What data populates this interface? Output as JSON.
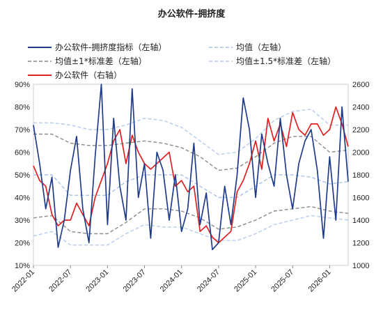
{
  "chart_data": {
    "type": "line",
    "title": "办公软件-拥挤度",
    "x_ticks": [
      "2022-01",
      "2022-07",
      "2023-01",
      "2023-07",
      "2024-01",
      "2024-07",
      "2025-01",
      "2025-07",
      "2026-01"
    ],
    "x_range": [
      "2022-01",
      "2026-04"
    ],
    "y_left": {
      "ticks": [
        "10%",
        "20%",
        "30%",
        "40%",
        "50%",
        "60%",
        "70%",
        "80%",
        "90%"
      ],
      "range": [
        10,
        90
      ]
    },
    "y_right": {
      "ticks": [
        "1000",
        "1200",
        "1400",
        "1600",
        "1800",
        "2000",
        "2200",
        "2400",
        "2600"
      ],
      "range": [
        1000,
        2600
      ]
    },
    "legend": {
      "crowding": "办公软件-拥挤度指标（左轴）",
      "mean": "均值（左轴）",
      "band1": "均值±1*标准差（左轴）",
      "band15": "均值±1.5*标准差（左轴）",
      "price": "办公软件（右轴）"
    },
    "colors": {
      "crowding": "#1f3c88",
      "mean": "#a9c1e6",
      "band1": "#8a8a8a",
      "band15": "#b6cbed",
      "price": "#e02020"
    },
    "series": [
      {
        "name": "办公软件-拥挤度指标（左轴）",
        "axis": "left",
        "x": [
          "2022-01",
          "2022-02",
          "2022-03",
          "2022-04",
          "2022-05",
          "2022-06",
          "2022-07",
          "2022-08",
          "2022-09",
          "2022-10",
          "2022-11",
          "2022-12",
          "2023-01",
          "2023-02",
          "2023-03",
          "2023-04",
          "2023-05",
          "2023-06",
          "2023-07",
          "2023-08",
          "2023-09",
          "2023-10",
          "2023-11",
          "2023-12",
          "2024-01",
          "2024-02",
          "2024-03",
          "2024-04",
          "2024-05",
          "2024-06",
          "2024-07",
          "2024-08",
          "2024-09",
          "2024-10",
          "2024-11",
          "2024-12",
          "2025-01",
          "2025-02",
          "2025-03",
          "2025-04",
          "2025-05",
          "2025-06",
          "2025-07",
          "2025-08",
          "2025-09",
          "2025-10",
          "2025-11",
          "2025-12",
          "2026-01",
          "2026-02",
          "2026-03",
          "2026-04"
        ],
        "y": [
          72,
          55,
          35,
          49,
          18,
          30,
          52,
          67,
          35,
          20,
          58,
          90,
          28,
          75,
          45,
          30,
          88,
          40,
          55,
          22,
          60,
          52,
          30,
          50,
          25,
          35,
          64,
          28,
          42,
          17,
          20,
          45,
          28,
          50,
          84,
          70,
          40,
          68,
          55,
          45,
          75,
          50,
          35,
          55,
          65,
          70,
          52,
          22,
          58,
          30,
          80,
          47
        ]
      },
      {
        "name": "均值（左轴）",
        "axis": "left",
        "x": [
          "2022-01",
          "2022-04",
          "2022-07",
          "2022-10",
          "2023-01",
          "2023-04",
          "2023-07",
          "2023-10",
          "2024-01",
          "2024-04",
          "2024-07",
          "2024-10",
          "2025-01",
          "2025-04",
          "2025-07",
          "2025-10",
          "2026-01",
          "2026-04"
        ],
        "y": [
          50,
          50,
          41,
          41,
          41,
          47,
          50,
          50,
          50,
          45,
          40,
          40,
          45,
          50,
          50,
          49,
          46,
          47
        ]
      },
      {
        "name": "均值+1*标准差（左轴）",
        "axis": "left",
        "x": [
          "2022-01",
          "2022-04",
          "2022-07",
          "2022-10",
          "2023-01",
          "2023-04",
          "2023-07",
          "2023-10",
          "2024-01",
          "2024-04",
          "2024-07",
          "2024-10",
          "2025-01",
          "2025-04",
          "2025-07",
          "2025-10",
          "2026-01",
          "2026-04"
        ],
        "y": [
          68,
          68,
          64,
          63,
          63,
          64,
          65,
          64,
          62,
          58,
          52,
          53,
          58,
          64,
          67,
          67,
          60,
          61
        ]
      },
      {
        "name": "均值-1*标准差（左轴）",
        "axis": "left",
        "x": [
          "2022-01",
          "2022-04",
          "2022-07",
          "2022-10",
          "2023-01",
          "2023-04",
          "2023-07",
          "2023-10",
          "2024-01",
          "2024-04",
          "2024-07",
          "2024-10",
          "2025-01",
          "2025-04",
          "2025-07",
          "2025-10",
          "2026-01",
          "2026-04"
        ],
        "y": [
          31,
          32,
          25,
          24,
          24,
          29,
          35,
          35,
          34,
          31,
          26,
          27,
          30,
          34,
          35,
          36,
          34,
          33
        ]
      },
      {
        "name": "均值+1.5*标准差（左轴）",
        "axis": "left",
        "x": [
          "2022-01",
          "2022-04",
          "2022-07",
          "2022-10",
          "2023-01",
          "2023-04",
          "2023-07",
          "2023-10",
          "2024-01",
          "2024-04",
          "2024-07",
          "2024-10",
          "2025-01",
          "2025-04",
          "2025-07",
          "2025-10",
          "2026-01",
          "2026-04"
        ],
        "y": [
          73,
          73,
          72,
          70,
          70,
          72,
          75,
          74,
          71,
          65,
          59,
          60,
          66,
          74,
          78,
          79,
          72,
          72
        ]
      },
      {
        "name": "均值-1.5*标准差（左轴）",
        "axis": "left",
        "x": [
          "2022-01",
          "2022-04",
          "2022-07",
          "2022-10",
          "2023-01",
          "2023-04",
          "2023-07",
          "2023-10",
          "2024-01",
          "2024-04",
          "2024-07",
          "2024-10",
          "2025-01",
          "2025-04",
          "2025-07",
          "2025-10",
          "2026-01",
          "2026-04"
        ],
        "y": [
          23,
          25,
          19,
          19,
          19,
          24,
          28,
          27,
          27,
          24,
          21,
          21,
          24,
          28,
          30,
          32,
          31,
          30
        ]
      },
      {
        "name": "办公软件（右轴）",
        "axis": "right",
        "x": [
          "2022-01",
          "2022-02",
          "2022-03",
          "2022-04",
          "2022-05",
          "2022-06",
          "2022-07",
          "2022-08",
          "2022-09",
          "2022-10",
          "2022-11",
          "2022-12",
          "2023-01",
          "2023-02",
          "2023-03",
          "2023-04",
          "2023-05",
          "2023-06",
          "2023-07",
          "2023-08",
          "2023-09",
          "2023-10",
          "2023-11",
          "2023-12",
          "2024-01",
          "2024-02",
          "2024-03",
          "2024-04",
          "2024-05",
          "2024-06",
          "2024-07",
          "2024-08",
          "2024-09",
          "2024-10",
          "2024-11",
          "2024-12",
          "2025-01",
          "2025-02",
          "2025-03",
          "2025-04",
          "2025-05",
          "2025-06",
          "2025-07",
          "2025-08",
          "2025-09",
          "2025-10",
          "2025-11",
          "2025-12",
          "2026-01",
          "2026-02",
          "2026-03",
          "2026-04"
        ],
        "y": [
          1880,
          1750,
          1700,
          1450,
          1350,
          1400,
          1400,
          1550,
          1450,
          1350,
          1600,
          1750,
          1900,
          2100,
          2200,
          1900,
          2150,
          2000,
          1900,
          1850,
          1900,
          1950,
          2000,
          1700,
          1750,
          1650,
          1700,
          1300,
          1350,
          1250,
          1200,
          1250,
          1300,
          1650,
          1750,
          1900,
          2100,
          1850,
          2300,
          2100,
          2250,
          2050,
          2350,
          2200,
          2150,
          2250,
          2250,
          2150,
          2200,
          2400,
          2250,
          2050
        ]
      }
    ]
  }
}
